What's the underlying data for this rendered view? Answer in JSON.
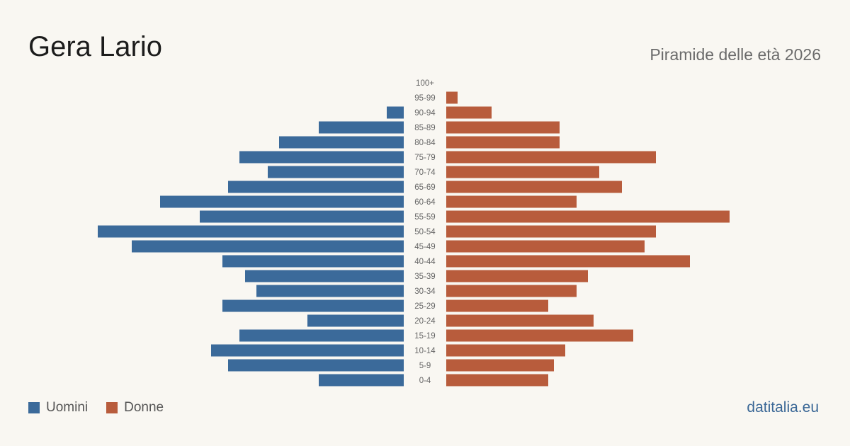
{
  "header": {
    "title": "Gera Lario",
    "subtitle": "Piramide delle età 2026"
  },
  "legend": {
    "men_label": "Uomini",
    "women_label": "Donne"
  },
  "colors": {
    "men": "#3b6a9a",
    "women": "#b85c3c",
    "background": "#f9f7f2"
  },
  "footer": {
    "site": "datitalia.eu"
  },
  "chart_data": {
    "type": "bar",
    "orientation": "population-pyramid",
    "categories": [
      "100+",
      "95-99",
      "90-94",
      "85-89",
      "80-84",
      "75-79",
      "70-74",
      "65-69",
      "60-64",
      "55-59",
      "50-54",
      "45-49",
      "40-44",
      "35-39",
      "30-34",
      "25-29",
      "20-24",
      "15-19",
      "10-14",
      "5-9",
      "0-4"
    ],
    "series": [
      {
        "name": "Uomini",
        "values": [
          0,
          0,
          3,
          15,
          22,
          29,
          24,
          31,
          43,
          36,
          54,
          48,
          32,
          28,
          26,
          32,
          17,
          29,
          34,
          31,
          15
        ]
      },
      {
        "name": "Donne",
        "values": [
          0,
          2,
          8,
          20,
          20,
          37,
          27,
          31,
          23,
          50,
          37,
          35,
          43,
          25,
          23,
          18,
          26,
          33,
          21,
          19,
          18
        ]
      }
    ]
  }
}
